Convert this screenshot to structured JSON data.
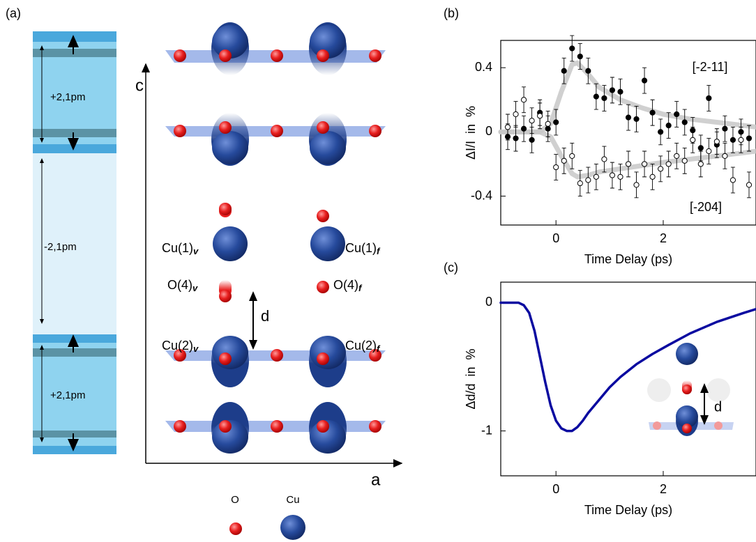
{
  "figure": {
    "panel_labels": [
      "(a)",
      "(b)",
      "(c)"
    ]
  },
  "diagram": {
    "strain_labels": [
      "+2,1pm",
      "-2,1pm",
      "+2,1pm"
    ],
    "axis_labels": [
      "c",
      "a"
    ],
    "site_labels": [
      {
        "text": "Cu(1)",
        "sub": "v"
      },
      {
        "text": "Cu(1)",
        "sub": "f"
      },
      {
        "text": "O(4)",
        "sub": "v"
      },
      {
        "text": "O(4)",
        "sub": "f"
      },
      {
        "text": "Cu(2)",
        "sub": "v"
      },
      {
        "text": "Cu(2)",
        "sub": "f"
      }
    ],
    "distance_label": "d",
    "legend": [
      "O",
      "Cu"
    ],
    "inset_label": "d"
  },
  "chart_data": [
    {
      "type": "scatter",
      "x_label": "Time Delay (ps)",
      "y_label": "ΔI/I  in  %",
      "xlim": [
        -1.03,
        3.73
      ],
      "ylim": [
        -0.58,
        0.57
      ],
      "xticks": [
        0,
        2
      ],
      "yticks": [
        -0.4,
        0,
        0.4
      ],
      "series": [
        {
          "name": "[-2-11]",
          "marker": "filled",
          "color": "#000000",
          "x": [
            -0.9,
            -0.75,
            -0.6,
            -0.45,
            -0.3,
            -0.15,
            0,
            0.15,
            0.3,
            0.45,
            0.6,
            0.75,
            0.9,
            1.05,
            1.2,
            1.35,
            1.5,
            1.65,
            1.8,
            1.95,
            2.1,
            2.25,
            2.4,
            2.55,
            2.7,
            2.85,
            3.0,
            3.15,
            3.3,
            3.45,
            3.6
          ],
          "values": [
            -0.03,
            -0.04,
            0.02,
            -0.05,
            0.12,
            0.02,
            0.06,
            0.38,
            0.52,
            0.47,
            0.38,
            0.22,
            0.21,
            0.26,
            0.25,
            0.09,
            0.08,
            0.32,
            0.12,
            0.0,
            0.04,
            0.11,
            0.06,
            0.01,
            -0.1,
            0.21,
            -0.08,
            0.02,
            -0.05,
            0.0,
            -0.04
          ],
          "errors": [
            0.08,
            0.08,
            0.08,
            0.08,
            0.08,
            0.08,
            0.08,
            0.08,
            0.08,
            0.08,
            0.08,
            0.08,
            0.08,
            0.08,
            0.08,
            0.08,
            0.08,
            0.08,
            0.08,
            0.08,
            0.08,
            0.08,
            0.08,
            0.08,
            0.08,
            0.08,
            0.08,
            0.08,
            0.08,
            0.08,
            0.08
          ]
        },
        {
          "name": "[-204]",
          "marker": "open",
          "color": "#000000",
          "x": [
            -0.9,
            -0.75,
            -0.6,
            -0.45,
            -0.3,
            -0.15,
            0,
            0.15,
            0.3,
            0.45,
            0.6,
            0.75,
            0.9,
            1.05,
            1.2,
            1.35,
            1.5,
            1.65,
            1.8,
            1.95,
            2.1,
            2.25,
            2.4,
            2.55,
            2.7,
            2.85,
            3.0,
            3.15,
            3.3,
            3.45,
            3.6
          ],
          "values": [
            0.03,
            0.11,
            0.2,
            0.07,
            0.1,
            0.05,
            -0.22,
            -0.18,
            -0.15,
            -0.32,
            -0.3,
            -0.28,
            -0.17,
            -0.27,
            -0.28,
            -0.2,
            -0.33,
            -0.2,
            -0.28,
            -0.23,
            -0.2,
            -0.15,
            -0.18,
            -0.05,
            -0.2,
            -0.12,
            -0.06,
            -0.15,
            -0.3,
            -0.05,
            -0.33
          ],
          "errors": [
            0.08,
            0.08,
            0.08,
            0.08,
            0.08,
            0.08,
            0.08,
            0.08,
            0.08,
            0.08,
            0.08,
            0.08,
            0.08,
            0.08,
            0.08,
            0.08,
            0.08,
            0.08,
            0.08,
            0.08,
            0.08,
            0.08,
            0.08,
            0.08,
            0.08,
            0.08,
            0.08,
            0.08,
            0.08,
            0.08,
            0.08
          ]
        },
        {
          "color": "#c8c8c8",
          "x": [
            -1.03,
            -0.3,
            -0.1,
            0.1,
            0.3,
            0.4,
            0.6,
            0.8,
            1.2,
            1.6,
            2.0,
            2.5,
            3.0,
            3.5,
            3.73
          ],
          "values": [
            0,
            0,
            0.05,
            0.25,
            0.42,
            0.43,
            0.36,
            0.28,
            0.2,
            0.15,
            0.11,
            0.08,
            0.06,
            0.04,
            0.03
          ]
        },
        {
          "color": "#c8c8c8",
          "x": [
            -1.03,
            -0.3,
            -0.1,
            0.1,
            0.3,
            0.4,
            0.6,
            0.8,
            1.2,
            1.6,
            2.0,
            2.5,
            3.0,
            3.5,
            3.73
          ],
          "values": [
            0,
            0,
            -0.03,
            -0.15,
            -0.26,
            -0.28,
            -0.27,
            -0.25,
            -0.23,
            -0.21,
            -0.19,
            -0.17,
            -0.15,
            -0.13,
            -0.12
          ]
        }
      ]
    },
    {
      "type": "line",
      "x_label": "Time Delay (ps)",
      "y_label": "Δd/d  in  %",
      "xlim": [
        -1.03,
        3.73
      ],
      "ylim": [
        -1.35,
        0.16
      ],
      "xticks": [
        0,
        2
      ],
      "yticks": [
        -1,
        0
      ],
      "series": [
        {
          "color": "#0a0aa0",
          "x": [
            -1.03,
            -0.8,
            -0.7,
            -0.6,
            -0.5,
            -0.4,
            -0.3,
            -0.2,
            -0.1,
            0,
            0.1,
            0.2,
            0.3,
            0.4,
            0.5,
            0.6,
            0.8,
            1.0,
            1.2,
            1.5,
            1.8,
            2.1,
            2.5,
            3.0,
            3.5,
            3.73
          ],
          "values": [
            0,
            0,
            0,
            -0.02,
            -0.08,
            -0.22,
            -0.42,
            -0.62,
            -0.8,
            -0.92,
            -0.98,
            -1.0,
            -1.0,
            -0.97,
            -0.92,
            -0.86,
            -0.76,
            -0.66,
            -0.58,
            -0.48,
            -0.4,
            -0.33,
            -0.24,
            -0.15,
            -0.08,
            -0.05
          ]
        }
      ]
    }
  ]
}
